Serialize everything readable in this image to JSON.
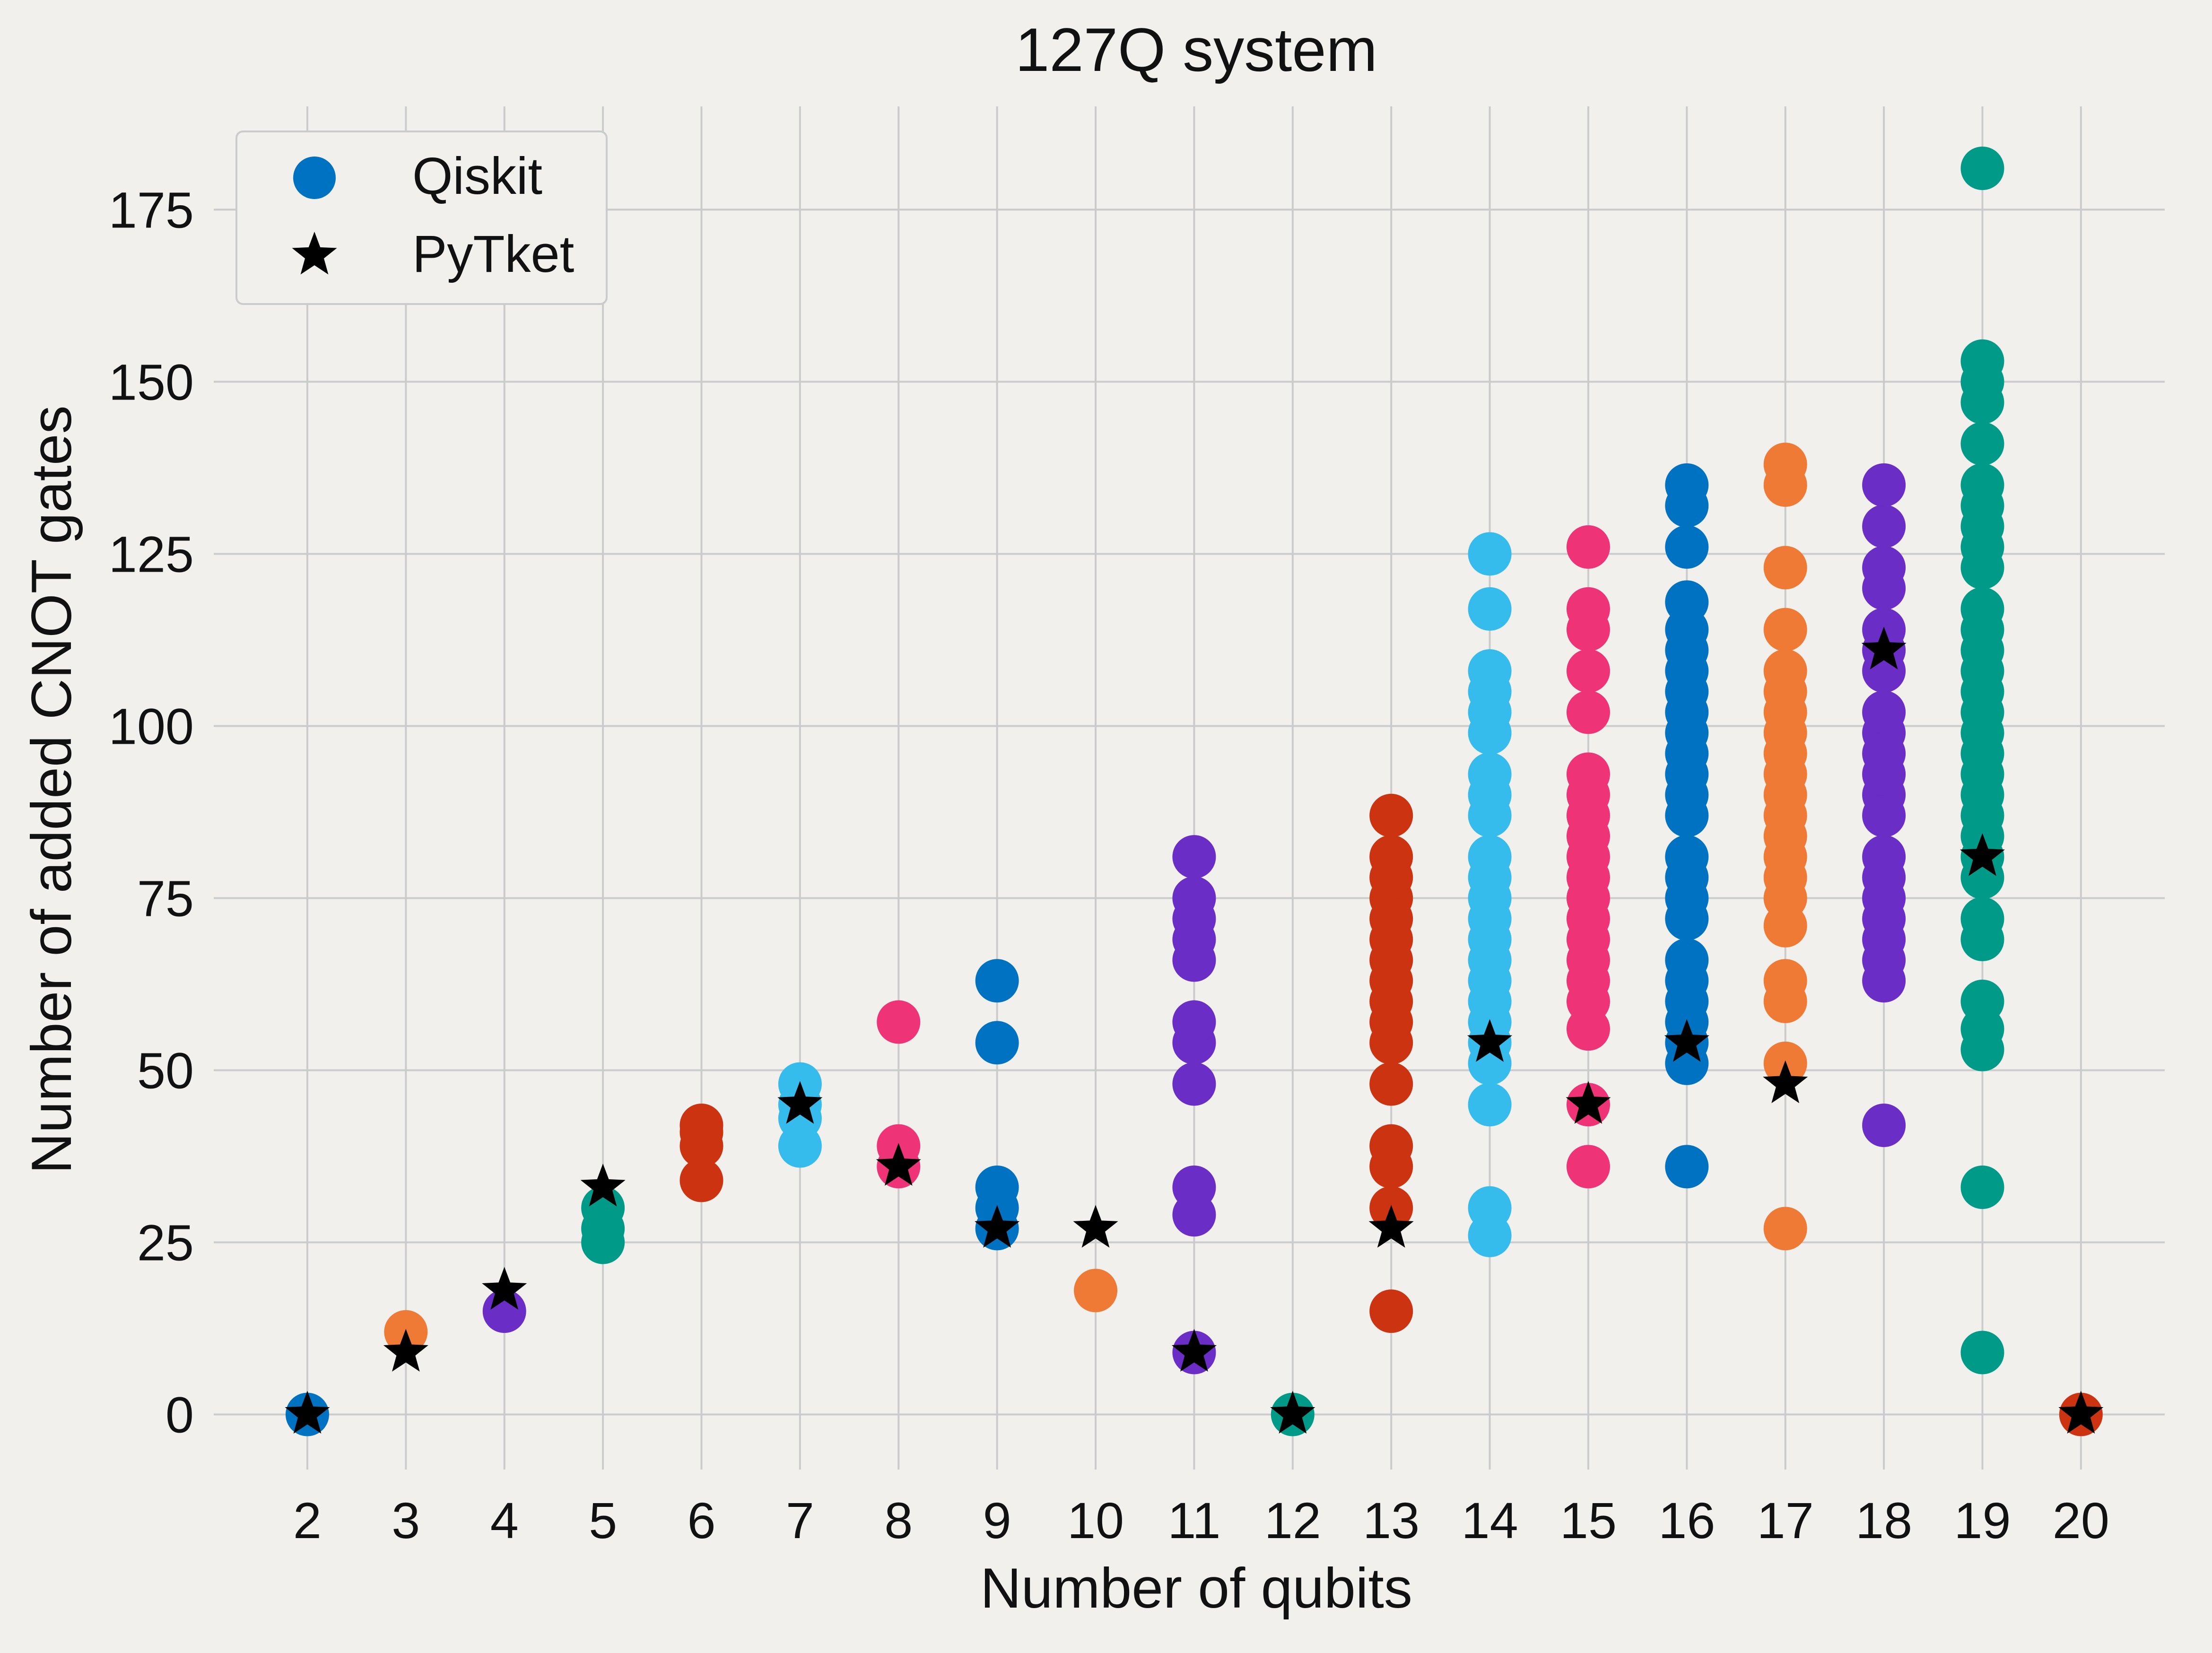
{
  "chart_data": {
    "type": "scatter",
    "title": "127Q system",
    "xlabel": "Number of qubits",
    "ylabel": "Number of added CNOT gates",
    "xlim": [
      1.05,
      20.85
    ],
    "ylim": [
      -8,
      190
    ],
    "x_ticks": [
      2,
      3,
      4,
      5,
      6,
      7,
      8,
      9,
      10,
      11,
      12,
      13,
      14,
      15,
      16,
      17,
      18,
      19,
      20
    ],
    "y_ticks": [
      0,
      25,
      50,
      75,
      100,
      125,
      150,
      175
    ],
    "grid": true,
    "legend": {
      "position": "top-left",
      "entries": [
        "Qiskit",
        "PyTket"
      ]
    },
    "colors": {
      "background": "#f2f0ec",
      "grid": "#cbcbcb",
      "pytket": "#000000",
      "qubit_palette": {
        "2": "#0072c2",
        "3": "#ef7a35",
        "4": "#6a2dc5",
        "5": "#009a88",
        "6": "#cc3311",
        "7": "#35bbec",
        "8": "#ee3377",
        "9": "#0072c2",
        "10": "#ef7a35",
        "11": "#6a2dc5",
        "12": "#009a88",
        "13": "#cc3311",
        "14": "#35bbec",
        "15": "#ee3377",
        "16": "#0072c2",
        "17": "#ef7a35",
        "18": "#6a2dc5",
        "19": "#009a88",
        "20": "#cc3311"
      }
    },
    "series": [
      {
        "name": "Qiskit",
        "marker": "circle",
        "groups": [
          {
            "x": 2,
            "values": [
              0
            ]
          },
          {
            "x": 3,
            "values": [
              12
            ]
          },
          {
            "x": 4,
            "values": [
              15
            ]
          },
          {
            "x": 5,
            "values": [
              25,
              27,
              30
            ]
          },
          {
            "x": 6,
            "values": [
              34,
              39,
              41,
              42
            ]
          },
          {
            "x": 7,
            "values": [
              39,
              43,
              45,
              48
            ]
          },
          {
            "x": 8,
            "values": [
              36,
              39,
              57
            ]
          },
          {
            "x": 9,
            "values": [
              27,
              30,
              33,
              54,
              63
            ]
          },
          {
            "x": 10,
            "values": [
              18
            ]
          },
          {
            "x": 11,
            "values": [
              9,
              29,
              33,
              48,
              54,
              57,
              66,
              69,
              72,
              75,
              81
            ]
          },
          {
            "x": 12,
            "values": [
              0
            ]
          },
          {
            "x": 13,
            "values": [
              15,
              30,
              36,
              39,
              48,
              54,
              57,
              60,
              63,
              66,
              69,
              72,
              75,
              78,
              81,
              87
            ]
          },
          {
            "x": 14,
            "values": [
              26,
              30,
              45,
              51,
              54,
              57,
              60,
              63,
              66,
              69,
              72,
              75,
              78,
              81,
              87,
              90,
              93,
              99,
              102,
              105,
              108,
              117,
              125
            ]
          },
          {
            "x": 15,
            "values": [
              36,
              45,
              56,
              60,
              63,
              66,
              69,
              72,
              75,
              78,
              81,
              84,
              87,
              90,
              93,
              102,
              108,
              114,
              117,
              126
            ]
          },
          {
            "x": 16,
            "values": [
              36,
              51,
              54,
              57,
              60,
              63,
              66,
              72,
              75,
              78,
              81,
              87,
              90,
              93,
              96,
              99,
              102,
              105,
              108,
              111,
              114,
              118,
              126,
              132,
              135
            ]
          },
          {
            "x": 17,
            "values": [
              27,
              51,
              60,
              63,
              71,
              75,
              78,
              81,
              84,
              87,
              90,
              93,
              96,
              99,
              102,
              105,
              108,
              114,
              123,
              135,
              138
            ]
          },
          {
            "x": 18,
            "values": [
              42,
              63,
              66,
              69,
              72,
              75,
              78,
              81,
              87,
              90,
              93,
              96,
              99,
              102,
              108,
              111,
              114,
              120,
              123,
              129,
              135
            ]
          },
          {
            "x": 19,
            "values": [
              9,
              33,
              53,
              56,
              60,
              69,
              72,
              78,
              81,
              84,
              87,
              90,
              93,
              96,
              99,
              102,
              105,
              108,
              111,
              114,
              117,
              123,
              126,
              129,
              132,
              135,
              141,
              147,
              150,
              153,
              181
            ]
          },
          {
            "x": 20,
            "values": [
              0
            ]
          }
        ]
      },
      {
        "name": "PyTket",
        "marker": "star",
        "x": [
          2,
          3,
          4,
          5,
          7,
          8,
          9,
          10,
          11,
          12,
          13,
          14,
          15,
          16,
          17,
          18,
          19,
          20
        ],
        "values": [
          0,
          9,
          18,
          33,
          45,
          36,
          27,
          27,
          9,
          0,
          27,
          54,
          45,
          54,
          48,
          111,
          81,
          0
        ]
      }
    ]
  }
}
